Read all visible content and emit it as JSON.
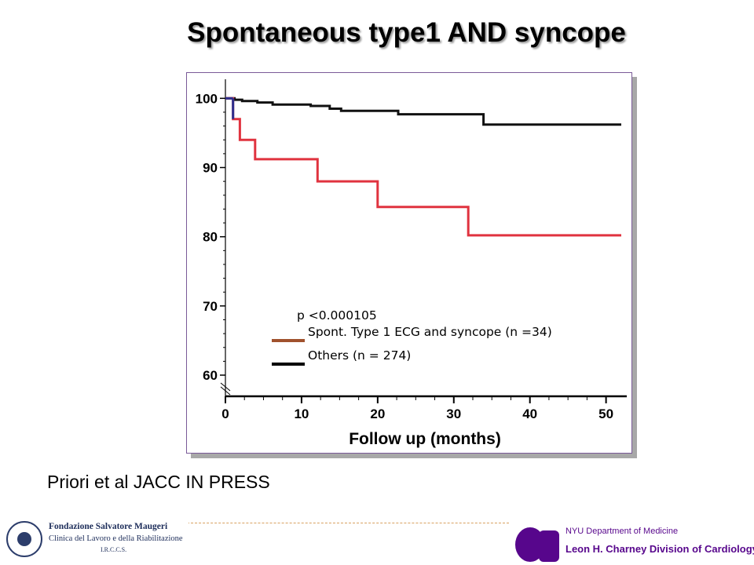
{
  "slide": {
    "title": "Spontaneous type1  AND syncope",
    "citation": "Priori et al JACC IN PRESS"
  },
  "chart_data": {
    "type": "line",
    "step": true,
    "xlabel": "Follow up (months)",
    "ylabel": "",
    "xlim": [
      0,
      52
    ],
    "ylim": [
      57,
      101
    ],
    "y_axis_break": true,
    "x_ticks": [
      0,
      10,
      20,
      30,
      40,
      50
    ],
    "y_ticks": [
      60,
      70,
      80,
      90,
      100
    ],
    "grid": false,
    "legend_position": "lower-left",
    "annotation": "p <0.000105",
    "series": [
      {
        "name": "Spont. Type 1 ECG and syncope (n =34)",
        "color": "#e0333f",
        "legend_color": "#a0522d",
        "x": [
          0,
          1.0,
          1.0,
          1.9,
          1.9,
          3.9,
          3.9,
          12.1,
          12.1,
          20.0,
          20.0,
          31.9,
          31.9,
          52.0
        ],
        "y": [
          100,
          100,
          97.0,
          97.0,
          94.0,
          94.0,
          91.2,
          91.2,
          88.0,
          88.0,
          84.3,
          84.3,
          80.2,
          80.2
        ]
      },
      {
        "name": "Others  (n = 274)",
        "color": "#111111",
        "legend_color": "#000000",
        "x": [
          0,
          1.2,
          1.2,
          2.2,
          2.2,
          4.2,
          4.2,
          6.2,
          6.2,
          11.2,
          11.2,
          13.7,
          13.7,
          15.2,
          15.2,
          22.7,
          22.7,
          33.9,
          33.9,
          52.0
        ],
        "y": [
          100,
          100,
          99.8,
          99.8,
          99.6,
          99.6,
          99.4,
          99.4,
          99.1,
          99.1,
          98.9,
          98.9,
          98.5,
          98.5,
          98.2,
          98.2,
          97.7,
          97.7,
          96.2,
          96.2
        ]
      }
    ]
  },
  "footer": {
    "left_logo_line1": "Fondazione Salvatore Maugeri",
    "left_logo_line2": "Clinica del Lavoro e della Riabilitazione",
    "left_logo_line3": "I.R.C.C.S.",
    "right_logo_line1": "NYU Department of Medicine",
    "right_logo_line2": "Leon H. Charney Division of Cardiology"
  },
  "colors": {
    "frame_border": "#7a5a98",
    "frame_shadow": "#a8a8a8",
    "early_drop_segment": "#2d2f8e"
  }
}
